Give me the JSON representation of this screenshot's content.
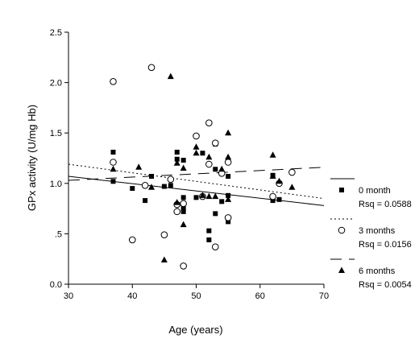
{
  "chart_data": {
    "type": "scatter",
    "xlabel": "Age (years)",
    "ylabel": "GPx activity (U/mg Hb)",
    "xlim": [
      30,
      70
    ],
    "ylim": [
      0.0,
      2.5
    ],
    "x_ticks": [
      30,
      40,
      50,
      60,
      70
    ],
    "y_ticks": [
      0.0,
      0.5,
      1.0,
      1.5,
      2.0,
      2.5
    ],
    "x_tick_labels": [
      "30",
      "40",
      "50",
      "60",
      "70"
    ],
    "y_tick_labels": [
      "0.0",
      ".5",
      "1.0",
      "1.5",
      "2.0",
      "2.5"
    ],
    "grid": false,
    "legend_position": "right",
    "series": [
      {
        "name": "0 month",
        "marker": "square",
        "fit_line": "solid",
        "fit": {
          "x": [
            30,
            70
          ],
          "y": [
            1.07,
            0.78
          ]
        },
        "rsq_label": "Rsq = 0.0588",
        "points": [
          {
            "x": 37,
            "y": 1.31
          },
          {
            "x": 37,
            "y": 1.02
          },
          {
            "x": 40,
            "y": 0.95
          },
          {
            "x": 42,
            "y": 0.83
          },
          {
            "x": 43,
            "y": 1.07
          },
          {
            "x": 45,
            "y": 0.97
          },
          {
            "x": 46,
            "y": 0.98
          },
          {
            "x": 47,
            "y": 1.31
          },
          {
            "x": 47,
            "y": 1.24
          },
          {
            "x": 48,
            "y": 1.23
          },
          {
            "x": 48,
            "y": 0.86
          },
          {
            "x": 48,
            "y": 0.75
          },
          {
            "x": 48,
            "y": 0.72
          },
          {
            "x": 50,
            "y": 0.86
          },
          {
            "x": 51,
            "y": 1.3
          },
          {
            "x": 52,
            "y": 0.53
          },
          {
            "x": 52,
            "y": 0.44
          },
          {
            "x": 53,
            "y": 1.39
          },
          {
            "x": 53,
            "y": 1.14
          },
          {
            "x": 53,
            "y": 0.7
          },
          {
            "x": 54,
            "y": 0.82
          },
          {
            "x": 55,
            "y": 1.07
          },
          {
            "x": 55,
            "y": 0.88
          },
          {
            "x": 55,
            "y": 0.62
          },
          {
            "x": 62,
            "y": 1.08
          },
          {
            "x": 62,
            "y": 0.83
          },
          {
            "x": 63,
            "y": 0.84
          }
        ]
      },
      {
        "name": "3 months",
        "marker": "circle",
        "fit_line": "dotted",
        "fit": {
          "x": [
            30,
            70
          ],
          "y": [
            1.19,
            0.85
          ]
        },
        "rsq_label": "Rsq = 0.0156",
        "points": [
          {
            "x": 37,
            "y": 2.01
          },
          {
            "x": 37,
            "y": 1.21
          },
          {
            "x": 40,
            "y": 0.44
          },
          {
            "x": 42,
            "y": 0.98
          },
          {
            "x": 43,
            "y": 2.15
          },
          {
            "x": 45,
            "y": 0.49
          },
          {
            "x": 46,
            "y": 1.04
          },
          {
            "x": 47,
            "y": 0.79
          },
          {
            "x": 47,
            "y": 0.72
          },
          {
            "x": 48,
            "y": 0.8
          },
          {
            "x": 48,
            "y": 0.18
          },
          {
            "x": 50,
            "y": 1.47
          },
          {
            "x": 51,
            "y": 0.87
          },
          {
            "x": 52,
            "y": 1.6
          },
          {
            "x": 52,
            "y": 1.19
          },
          {
            "x": 53,
            "y": 1.4
          },
          {
            "x": 53,
            "y": 0.37
          },
          {
            "x": 54,
            "y": 1.1
          },
          {
            "x": 55,
            "y": 1.21
          },
          {
            "x": 55,
            "y": 0.66
          },
          {
            "x": 62,
            "y": 0.87
          },
          {
            "x": 63,
            "y": 1.0
          },
          {
            "x": 65,
            "y": 1.11
          }
        ]
      },
      {
        "name": "6 months",
        "marker": "triangle",
        "fit_line": "dashed",
        "fit": {
          "x": [
            30,
            70
          ],
          "y": [
            1.03,
            1.16
          ]
        },
        "rsq_label": "Rsq = 0.0054",
        "points": [
          {
            "x": 37,
            "y": 1.14
          },
          {
            "x": 41,
            "y": 1.16
          },
          {
            "x": 43,
            "y": 0.96
          },
          {
            "x": 45,
            "y": 0.24
          },
          {
            "x": 46,
            "y": 2.06
          },
          {
            "x": 47,
            "y": 1.2
          },
          {
            "x": 47,
            "y": 0.81
          },
          {
            "x": 48,
            "y": 1.15
          },
          {
            "x": 48,
            "y": 0.59
          },
          {
            "x": 50,
            "y": 1.36
          },
          {
            "x": 50,
            "y": 1.3
          },
          {
            "x": 51,
            "y": 0.88
          },
          {
            "x": 52,
            "y": 1.26
          },
          {
            "x": 52,
            "y": 0.87
          },
          {
            "x": 53,
            "y": 0.87
          },
          {
            "x": 54,
            "y": 1.14
          },
          {
            "x": 55,
            "y": 1.5
          },
          {
            "x": 55,
            "y": 1.26
          },
          {
            "x": 55,
            "y": 0.84
          },
          {
            "x": 62,
            "y": 1.28
          },
          {
            "x": 62,
            "y": 1.07
          },
          {
            "x": 63,
            "y": 1.02
          },
          {
            "x": 65,
            "y": 0.96
          }
        ]
      }
    ]
  }
}
